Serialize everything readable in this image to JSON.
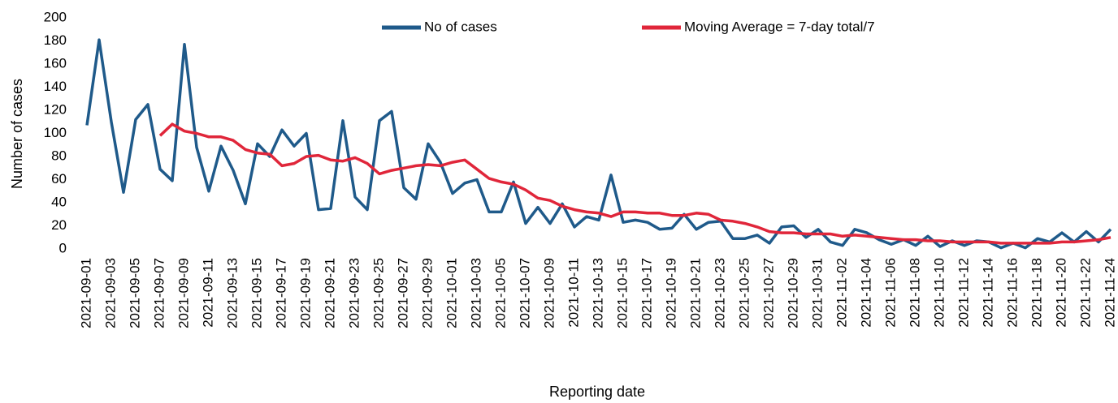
{
  "chart_data": {
    "type": "line",
    "y_label": "Number of cases",
    "x_label": "Reporting date",
    "categories": [
      "2021-09-01",
      null,
      "2021-09-03",
      null,
      "2021-09-05",
      null,
      "2021-09-07",
      null,
      "2021-09-09",
      null,
      "2021-09-11",
      null,
      "2021-09-13",
      null,
      "2021-09-15",
      null,
      "2021-09-17",
      null,
      "2021-09-19",
      null,
      "2021-09-21",
      null,
      "2021-09-23",
      null,
      "2021-09-25",
      null,
      "2021-09-27",
      null,
      "2021-09-29",
      null,
      "2021-10-01",
      null,
      "2021-10-03",
      null,
      "2021-10-05",
      null,
      "2021-10-07",
      null,
      "2021-10-09",
      null,
      "2021-10-11",
      null,
      "2021-10-13",
      null,
      "2021-10-15",
      null,
      "2021-10-17",
      null,
      "2021-10-19",
      null,
      "2021-10-21",
      null,
      "2021-10-23",
      null,
      "2021-10-25",
      null,
      "2021-10-27",
      null,
      "2021-10-29",
      null,
      "2021-10-31",
      null,
      "2021-11-02",
      null,
      "2021-11-04",
      null,
      "2021-11-06",
      null,
      "2021-11-08",
      null,
      "2021-11-10",
      null,
      "2021-11-12",
      null,
      "2021-11-14",
      null,
      "2021-11-16",
      null,
      "2021-11-18",
      null,
      "2021-11-20",
      null,
      "2021-11-22",
      null,
      "2021-11-24"
    ],
    "series": [
      {
        "name": "No of cases",
        "color": "#1f5a8a",
        "values": [
          107,
          181,
          110,
          49,
          112,
          125,
          69,
          59,
          177,
          88,
          50,
          89,
          68,
          39,
          91,
          80,
          103,
          89,
          100,
          34,
          35,
          111,
          45,
          34,
          111,
          119,
          53,
          43,
          91,
          75,
          48,
          57,
          60,
          32,
          32,
          58,
          22,
          36,
          22,
          39,
          19,
          28,
          25,
          64,
          23,
          25,
          23,
          17,
          18,
          30,
          17,
          23,
          24,
          9,
          9,
          12,
          5,
          19,
          20,
          10,
          17,
          6,
          3,
          17,
          14,
          8,
          4,
          8,
          3,
          11,
          2,
          7,
          3,
          7,
          6,
          1,
          5,
          1,
          9,
          6,
          14,
          6,
          15,
          6,
          17
        ]
      },
      {
        "name": "Moving Average = 7-day total/7",
        "color": "#e0263a",
        "values": [
          null,
          null,
          null,
          null,
          null,
          null,
          98,
          108,
          102,
          100,
          97,
          97,
          94,
          86,
          83,
          82,
          72,
          74,
          80,
          81,
          77,
          76,
          79,
          74,
          65,
          68,
          70,
          72,
          73,
          72,
          75,
          77,
          69,
          61,
          58,
          56,
          51,
          44,
          42,
          37,
          34,
          32,
          31,
          28,
          32,
          32,
          31,
          31,
          29,
          29,
          31,
          30,
          25,
          24,
          22,
          19,
          15,
          14,
          14,
          13,
          13,
          13,
          11,
          12,
          11,
          10,
          9,
          8,
          8,
          7,
          7,
          6,
          6,
          6,
          6,
          5,
          5,
          5,
          5,
          5,
          6,
          6,
          7,
          8,
          10
        ]
      }
    ],
    "ylim": [
      0,
      200
    ],
    "yticks": [
      0,
      20,
      40,
      60,
      80,
      100,
      120,
      140,
      160,
      180,
      200
    ],
    "grid": false
  }
}
